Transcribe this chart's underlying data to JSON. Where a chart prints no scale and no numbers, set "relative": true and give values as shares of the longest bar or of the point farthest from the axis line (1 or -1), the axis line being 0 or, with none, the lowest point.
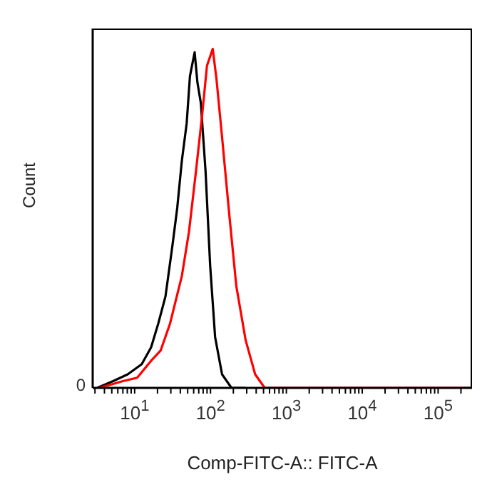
{
  "chart_data": {
    "type": "line",
    "relative": true,
    "xlabel": "Comp-FITC-A:: FITC-A",
    "ylabel": "Count",
    "log": "x",
    "xlim": [
      2.8,
      280000
    ],
    "xticks": [
      {
        "value": 3,
        "label": null
      },
      {
        "value": 4,
        "label": null
      },
      {
        "value": 5,
        "label": null
      },
      {
        "value": 6,
        "label": null
      },
      {
        "value": 7,
        "label": null
      },
      {
        "value": 8,
        "label": null
      },
      {
        "value": 9,
        "label": null
      },
      {
        "value": 10,
        "label": "10$^{1}$"
      },
      {
        "value": 20,
        "label": null
      },
      {
        "value": 30,
        "label": null
      },
      {
        "value": 40,
        "label": null
      },
      {
        "value": 50,
        "label": null
      },
      {
        "value": 60,
        "label": null
      },
      {
        "value": 70,
        "label": null
      },
      {
        "value": 80,
        "label": null
      },
      {
        "value": 90,
        "label": null
      },
      {
        "value": 100,
        "label": "10$^{2}$"
      },
      {
        "value": 200,
        "label": null
      },
      {
        "value": 300,
        "label": null
      },
      {
        "value": 400,
        "label": null
      },
      {
        "value": 500,
        "label": null
      },
      {
        "value": 600,
        "label": null
      },
      {
        "value": 700,
        "label": null
      },
      {
        "value": 800,
        "label": null
      },
      {
        "value": 900,
        "label": null
      },
      {
        "value": 1000,
        "label": "10$^{3}$"
      },
      {
        "value": 2000,
        "label": null
      },
      {
        "value": 3000,
        "label": null
      },
      {
        "value": 4000,
        "label": null
      },
      {
        "value": 5000,
        "label": null
      },
      {
        "value": 6000,
        "label": null
      },
      {
        "value": 7000,
        "label": null
      },
      {
        "value": 8000,
        "label": null
      },
      {
        "value": 9000,
        "label": null
      },
      {
        "value": 10000,
        "label": "10$^{4}$"
      },
      {
        "value": 20000,
        "label": null
      },
      {
        "value": 30000,
        "label": null
      },
      {
        "value": 40000,
        "label": null
      },
      {
        "value": 50000,
        "label": null
      },
      {
        "value": 60000,
        "label": null
      },
      {
        "value": 70000,
        "label": null
      },
      {
        "value": 80000,
        "label": null
      },
      {
        "value": 90000,
        "label": null
      },
      {
        "value": 100000,
        "label": "10$^{5}$"
      },
      {
        "value": 200000,
        "label": null
      }
    ],
    "annotations": [
      "0"
    ],
    "grid": false,
    "legend": false,
    "marker": "none",
    "line_style": "solid",
    "series": [
      {
        "color": "#000000",
        "x": [
          3.2,
          5.2,
          8.1,
          12.4,
          16.5,
          20.5,
          25.5,
          31.5,
          36.4,
          41.9,
          48.5,
          53.6,
          61.8,
          67.3,
          74.6,
          86,
          99,
          115,
          142,
          189,
          287
        ],
        "values": [
          0,
          0.02,
          0.04,
          0.07,
          0.12,
          0.19,
          0.27,
          0.42,
          0.53,
          0.67,
          0.78,
          0.92,
          0.99,
          0.9,
          0.84,
          0.64,
          0.36,
          0.15,
          0.04,
          0,
          0
        ]
      },
      {
        "color": "#ff0000",
        "x": [
          3.4,
          7,
          10.8,
          16.5,
          22,
          29.3,
          41.9,
          52,
          64.4,
          78,
          89.8,
          107,
          120,
          142,
          177,
          219,
          291,
          388,
          518,
          918,
          280000
        ],
        "values": [
          0,
          0.02,
          0.03,
          0.08,
          0.11,
          0.19,
          0.33,
          0.46,
          0.64,
          0.81,
          0.95,
          1,
          0.91,
          0.74,
          0.51,
          0.3,
          0.14,
          0.04,
          0,
          0,
          0
        ]
      }
    ]
  }
}
